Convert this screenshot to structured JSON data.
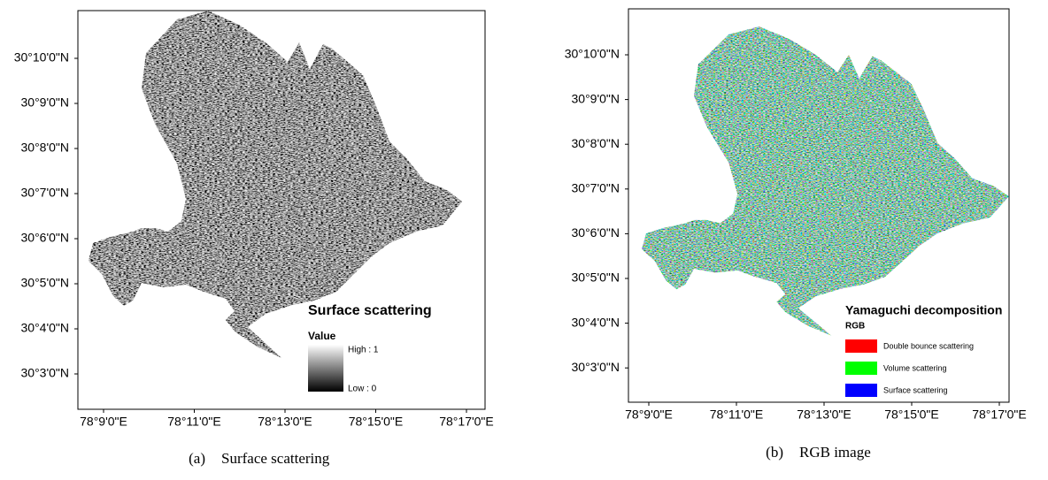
{
  "panels": [
    {
      "lat_labels": [
        "30°10'0\"N",
        "30°9'0\"N",
        "30°8'0\"N",
        "30°7'0\"N",
        "30°6'0\"N",
        "30°5'0\"N",
        "30°4'0\"N",
        "30°3'0\"N"
      ],
      "lon_labels": [
        "78°9'0\"E",
        "78°11'0\"E",
        "78°13'0\"E",
        "78°15'0\"E",
        "78°17'0\"E"
      ],
      "legend": {
        "title": "Surface scattering",
        "subtitle": "Value",
        "high": "High : 1",
        "low": "Low : 0"
      },
      "caption": {
        "label": "(a)",
        "text": "Surface scattering"
      }
    },
    {
      "lat_labels": [
        "30°10'0\"N",
        "30°9'0\"N",
        "30°8'0\"N",
        "30°7'0\"N",
        "30°6'0\"N",
        "30°5'0\"N",
        "30°4'0\"N",
        "30°3'0\"N"
      ],
      "lon_labels": [
        "78°9'0\"E",
        "78°11'0\"E",
        "78°13'0\"E",
        "78°15'0\"E",
        "78°17'0\"E"
      ],
      "legend": {
        "title": "Yamaguchi decomposition",
        "subtitle": "RGB",
        "items": [
          {
            "label": "Double bounce scattering",
            "color": "#ff0000"
          },
          {
            "label": "Volume scattering",
            "color": "#00ff00"
          },
          {
            "label": "Surface scattering",
            "color": "#0000ff"
          }
        ]
      },
      "caption": {
        "label": "(b)",
        "text": "RGB image"
      }
    }
  ]
}
